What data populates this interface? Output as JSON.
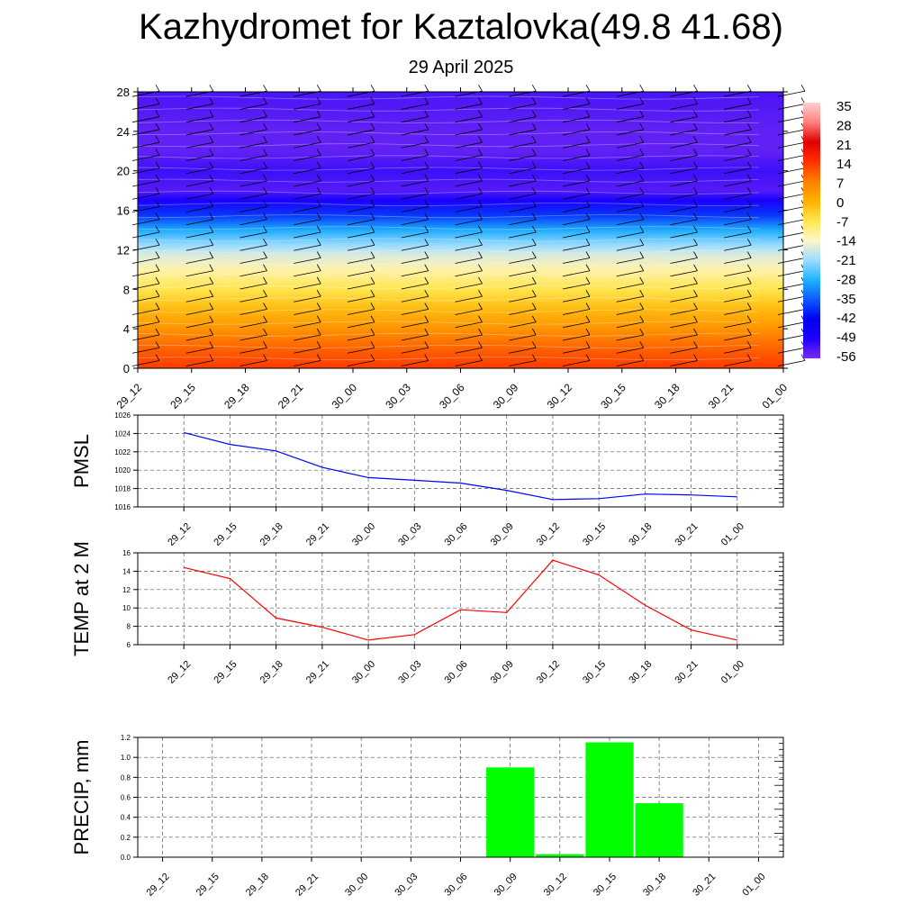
{
  "title": "Kazhydromet for Kaztalovka(49.8 41.68)",
  "subtitle": "29 April 2025",
  "time_labels": [
    "29_12",
    "29_15",
    "29_18",
    "29_21",
    "30_00",
    "30_03",
    "30_06",
    "30_09",
    "30_12",
    "30_15",
    "30_18",
    "30_21",
    "01_00"
  ],
  "chart_data": [
    {
      "type": "heatmap",
      "description_of_fill": "temperature cross-section, warm near bottom, cold aloft",
      "y_ticks": [
        "0",
        "4",
        "8",
        "12",
        "16",
        "20",
        "24",
        "28"
      ],
      "ylim": [
        0,
        28
      ],
      "colorbar_labels": [
        "35",
        "28",
        "21",
        "14",
        "7",
        "0",
        "-7",
        "-14",
        "-21",
        "-28",
        "-35",
        "-42",
        "-49",
        "-56"
      ],
      "colorbar_range": [
        -60,
        40
      ],
      "colormap_stops": [
        "#7a2cf0",
        "#1c00ff",
        "#0000ee",
        "#0e5bff",
        "#1fb4ff",
        "#9fdcff",
        "#fff6c8",
        "#ffe650",
        "#ffb000",
        "#ff7f00",
        "#ff3000",
        "#e00000",
        "#ff8080",
        "#ffd0d0"
      ],
      "profile_levels": [
        0,
        2,
        4,
        6,
        8,
        10,
        11.5,
        12.5,
        14,
        15.5,
        17,
        18,
        19,
        20,
        22,
        24,
        26,
        28
      ],
      "profile_temps": [
        16,
        12,
        6,
        0,
        -6,
        -12,
        -17,
        -22,
        -30,
        -40,
        -52,
        -57,
        -56,
        -55,
        -58,
        -58,
        -57,
        -56
      ]
    },
    {
      "type": "line",
      "ylabel": "PMSL",
      "y_ticks": [
        "1016",
        "1018",
        "1020",
        "1022",
        "1024",
        "1026"
      ],
      "ylim": [
        1016,
        1026
      ],
      "series": [
        {
          "color": "#0000ff",
          "values": [
            1024.1,
            1022.8,
            1022.1,
            1020.3,
            1019.2,
            1018.9,
            1018.6,
            1017.8,
            1016.8,
            1016.9,
            1017.4,
            1017.3,
            1017.1
          ]
        }
      ]
    },
    {
      "type": "line",
      "ylabel": "TEMP at 2 M",
      "y_ticks": [
        "6",
        "8",
        "10",
        "12",
        "14",
        "16"
      ],
      "ylim": [
        6,
        16
      ],
      "series": [
        {
          "color": "#ff0000",
          "values": [
            14.4,
            13.2,
            8.9,
            7.9,
            6.5,
            7.1,
            9.8,
            9.5,
            15.2,
            13.6,
            10.3,
            7.6,
            6.5
          ]
        }
      ]
    },
    {
      "type": "bar",
      "ylabel": "PRECIP, mm",
      "y_ticks": [
        "0.0",
        "0.2",
        "0.4",
        "0.6",
        "0.8",
        "1.0",
        "1.2"
      ],
      "ylim": [
        0,
        1.2
      ],
      "color": "#00ff00",
      "values": [
        0,
        0,
        0,
        0,
        0,
        0,
        0,
        0.9,
        0.03,
        1.15,
        0.54,
        0,
        0
      ]
    }
  ]
}
